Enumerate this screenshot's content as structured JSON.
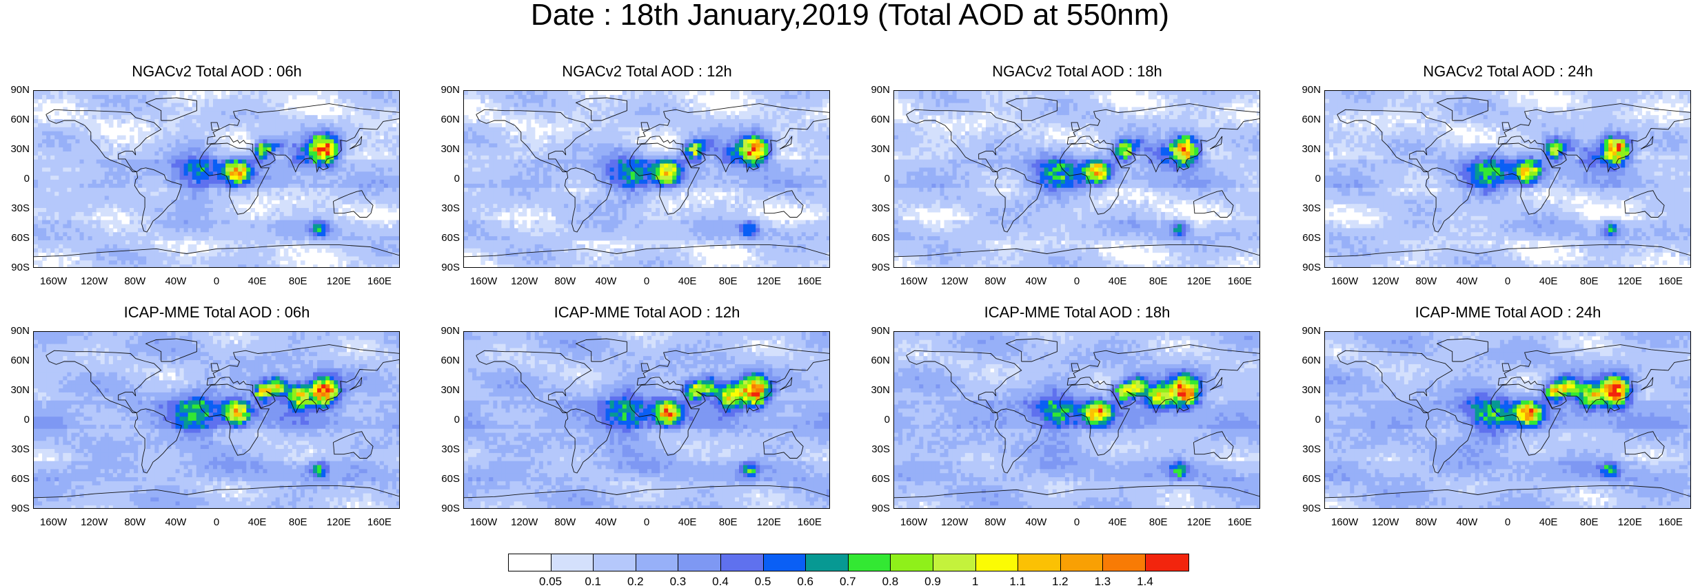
{
  "title": "Date : 18th January,2019 (Total AOD at 550nm)",
  "panels": [
    {
      "title": "NGACv2 Total AOD : 06h"
    },
    {
      "title": "NGACv2 Total AOD : 12h"
    },
    {
      "title": "NGACv2 Total AOD : 18h"
    },
    {
      "title": "NGACv2 Total AOD : 24h"
    },
    {
      "title": "ICAP-MME Total AOD : 06h"
    },
    {
      "title": "ICAP-MME Total AOD : 12h"
    },
    {
      "title": "ICAP-MME Total AOD : 18h"
    },
    {
      "title": "ICAP-MME Total AOD : 24h"
    }
  ],
  "lat_ticks": [
    "90N",
    "60N",
    "30N",
    "0",
    "30S",
    "60S",
    "90S"
  ],
  "lon_ticks": [
    "160W",
    "120W",
    "80W",
    "40W",
    "0",
    "40E",
    "80E",
    "120E",
    "160E"
  ],
  "colorbar": {
    "labels": [
      "0.05",
      "0.1",
      "0.2",
      "0.3",
      "0.4",
      "0.5",
      "0.6",
      "0.7",
      "0.8",
      "0.9",
      "1",
      "1.1",
      "1.2",
      "1.3",
      "1.4"
    ],
    "colors": [
      "#ffffff",
      "#d4e0fc",
      "#b5c8fb",
      "#97b0f8",
      "#7e98f3",
      "#5f71ee",
      "#0a5ff5",
      "#079993",
      "#33e833",
      "#8ff01a",
      "#c4f23c",
      "#fbfb04",
      "#fbc104",
      "#f9a004",
      "#f87b05",
      "#f2250d"
    ]
  }
}
